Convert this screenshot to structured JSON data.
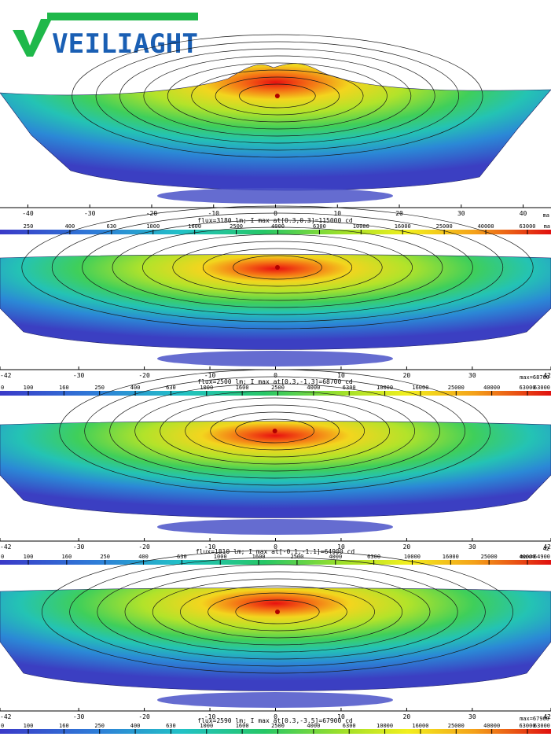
{
  "brand": {
    "name": "VEILIAGHT",
    "colors": {
      "green": "#1fb84a",
      "blue": "#1a5fb4"
    }
  },
  "chart_data": [
    {
      "type": "heatmap",
      "title": "",
      "xlabel": "",
      "ylabel": "",
      "xlim": [
        -44.5,
        44.5
      ],
      "xticks": [
        -40,
        -30,
        -20,
        -10,
        0,
        10,
        20,
        30,
        40
      ],
      "edge_label_right": "ma",
      "summary": "flux=3180 lm; I max at[0.3,0.3]=115000 cd",
      "flux_lm": 3180,
      "max_location": [
        0.3,
        0.3
      ],
      "max_cd": 115000,
      "colorbar_ticks": [
        250,
        400,
        630,
        1000,
        1600,
        2500,
        4000,
        6300,
        10000,
        16000,
        25000,
        40000,
        63000
      ],
      "colorbar_edge_left": "",
      "colorbar_edge_right": "ma",
      "peak_cy": 122,
      "spread_x": 9.5
    },
    {
      "type": "heatmap",
      "title": "",
      "xlabel": "",
      "ylabel": "",
      "xlim": [
        -42,
        42
      ],
      "xticks": [
        -42,
        -30,
        -20,
        -10,
        0,
        10,
        20,
        30,
        42
      ],
      "edge_label_right": "max=68700",
      "summary": "flux=2500 lm; I max at[0.3,-1.3]=68700 cd",
      "flux_lm": 2500,
      "max_location": [
        0.3,
        -1.3
      ],
      "max_cd": 68700,
      "colorbar_ticks": [
        100,
        160,
        250,
        400,
        630,
        1000,
        1600,
        2500,
        4000,
        6300,
        10000,
        16000,
        25000,
        40000,
        63000
      ],
      "colorbar_edge_left": "0",
      "colorbar_edge_right": "63000",
      "peak_cy": 340,
      "spread_x": 12
    },
    {
      "type": "heatmap",
      "title": "",
      "xlabel": "",
      "ylabel": "",
      "xlim": [
        -42,
        42
      ],
      "xticks": [
        -42,
        -30,
        -20,
        -10,
        0,
        10,
        20,
        30,
        42
      ],
      "edge_label_right": "42",
      "summary": "flux=1810 lm; I max at[-0.1,-1.1]=64900 cd",
      "flux_lm": 1810,
      "max_location": [
        -0.1,
        -1.1
      ],
      "max_cd": 64900,
      "colorbar_ticks": [
        100,
        160,
        250,
        400,
        630,
        1000,
        1600,
        2500,
        4000,
        6300,
        10000,
        16000,
        25000,
        40000
      ],
      "colorbar_edge_left": "0",
      "colorbar_edge_right": "max=64900",
      "peak_cy": 548,
      "spread_x": 10
    },
    {
      "type": "heatmap",
      "title": "",
      "xlabel": "",
      "ylabel": "",
      "xlim": [
        -42,
        42
      ],
      "xticks": [
        -42,
        -30,
        -20,
        -10,
        0,
        10,
        20,
        30,
        42
      ],
      "edge_label_right": "max=67900",
      "summary": "flux=2590 lm; I max at[0.3,-3.5]=67900 cd",
      "flux_lm": 2590,
      "max_location": [
        0.3,
        -3.5
      ],
      "max_cd": 67900,
      "colorbar_ticks": [
        100,
        160,
        250,
        400,
        630,
        1000,
        1600,
        2500,
        4000,
        6300,
        10000,
        16000,
        25000,
        40000,
        63000
      ],
      "colorbar_edge_left": "0",
      "colorbar_edge_right": "63000",
      "peak_cy": 778,
      "spread_x": 11
    }
  ]
}
